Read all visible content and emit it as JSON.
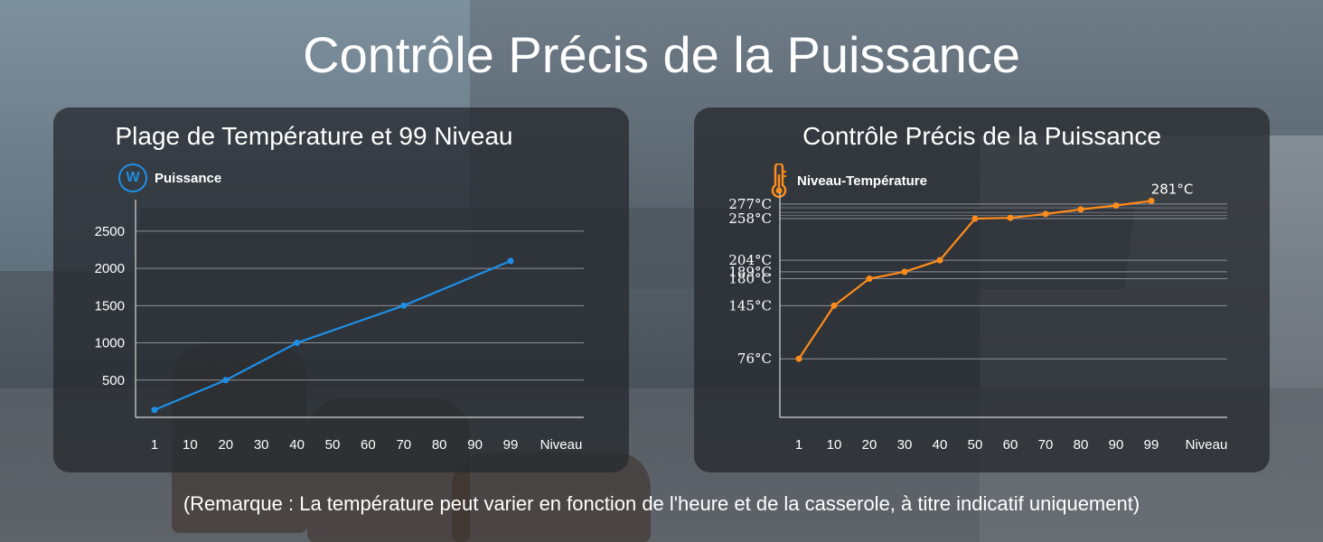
{
  "header": {
    "title": "Contrôle Précis de la Puissance"
  },
  "note": "(Remarque : La température peut varier en fonction de l'heure et de la casserole, à titre indicatif uniquement)",
  "colors": {
    "power_line": "#1e8fe6",
    "temp_line": "#ff8c1a",
    "axis": "#d8d8d8",
    "grid": "#8c9196"
  },
  "icons": {
    "left_legend": "power-w-icon",
    "right_legend": "thermometer-icon"
  },
  "chart_data": [
    {
      "type": "line",
      "title": "Plage de Température et 99 Niveau",
      "legend": "Puissance",
      "xlabel": "Niveau",
      "x_ticks": [
        "1",
        "10",
        "20",
        "30",
        "40",
        "50",
        "60",
        "70",
        "80",
        "90",
        "99"
      ],
      "y_ticks": [
        "500",
        "1000",
        "1500",
        "2000",
        "2500"
      ],
      "ylim": [
        0,
        2850
      ],
      "series": [
        {
          "x": [
            1,
            20,
            40,
            70,
            99
          ],
          "values": [
            100,
            500,
            1000,
            1500,
            2100
          ]
        }
      ],
      "grid": true
    },
    {
      "type": "line",
      "title": "Contrôle Précis de la Puissance",
      "legend": "Niveau-Température",
      "xlabel": "Niveau",
      "x_ticks": [
        "1",
        "10",
        "20",
        "30",
        "40",
        "50",
        "60",
        "70",
        "80",
        "90",
        "99"
      ],
      "y_ticks": [
        "76°C",
        "145°C",
        "180°C",
        "189°C",
        "204°C",
        "258°C",
        "277°C"
      ],
      "y_tick_values": [
        76,
        145,
        180,
        189,
        204,
        258,
        277
      ],
      "ylim": [
        0,
        285
      ],
      "series": [
        {
          "x": [
            1,
            10,
            20,
            30,
            40,
            50,
            60,
            70,
            80,
            90,
            99
          ],
          "values": [
            76,
            145,
            180,
            189,
            204,
            258,
            259,
            264,
            270,
            275,
            281
          ]
        }
      ],
      "data_labels": [
        {
          "index": 10,
          "text": "281°C"
        }
      ],
      "grid": true
    }
  ]
}
